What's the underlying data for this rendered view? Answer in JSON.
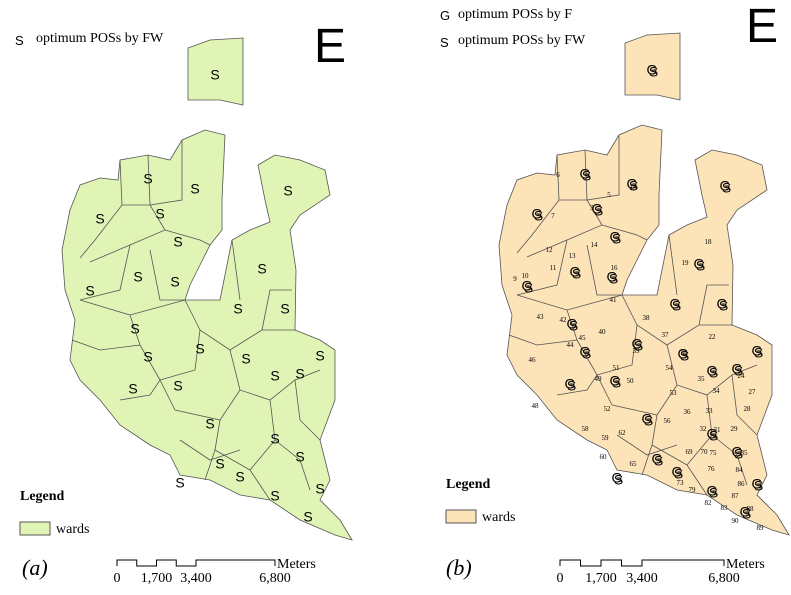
{
  "panels": [
    {
      "label": "(a)",
      "legend_entries": [
        {
          "symbol": "S",
          "text": "optimum POSs by FW"
        }
      ],
      "north_arrow": "E",
      "legend": {
        "title": "Legend",
        "item": "wards"
      },
      "scale_bar": {
        "ticks": [
          "0",
          "1,700",
          "3,400",
          "6,800"
        ],
        "unit": "Meters"
      }
    },
    {
      "label": "(b)",
      "legend_entries": [
        {
          "symbol": "G",
          "text": "optimum POSs by F"
        },
        {
          "symbol": "S",
          "text": "optimum POSs by FW"
        }
      ],
      "north_arrow": "E",
      "legend": {
        "title": "Legend",
        "item": "wards"
      },
      "scale_bar": {
        "ticks": [
          "0",
          "1,700",
          "3,400",
          "6,800"
        ],
        "unit": "Meters"
      },
      "ward_labels": [
        "6",
        "5",
        "3",
        "7",
        "15",
        "14",
        "12",
        "13",
        "11",
        "16",
        "18",
        "19",
        "10",
        "9",
        "41",
        "38",
        "43",
        "37",
        "40",
        "22",
        "42",
        "45",
        "44",
        "39",
        "55",
        "46",
        "54",
        "35",
        "24",
        "51",
        "49",
        "50",
        "53",
        "34",
        "27",
        "48",
        "52",
        "36",
        "33",
        "28",
        "56",
        "32",
        "29",
        "58",
        "62",
        "59",
        "31",
        "75",
        "85",
        "84",
        "86",
        "87",
        "82",
        "83",
        "88",
        "90",
        "89",
        "79",
        "73",
        "76",
        "60",
        "65",
        "69",
        "70"
      ]
    }
  ]
}
